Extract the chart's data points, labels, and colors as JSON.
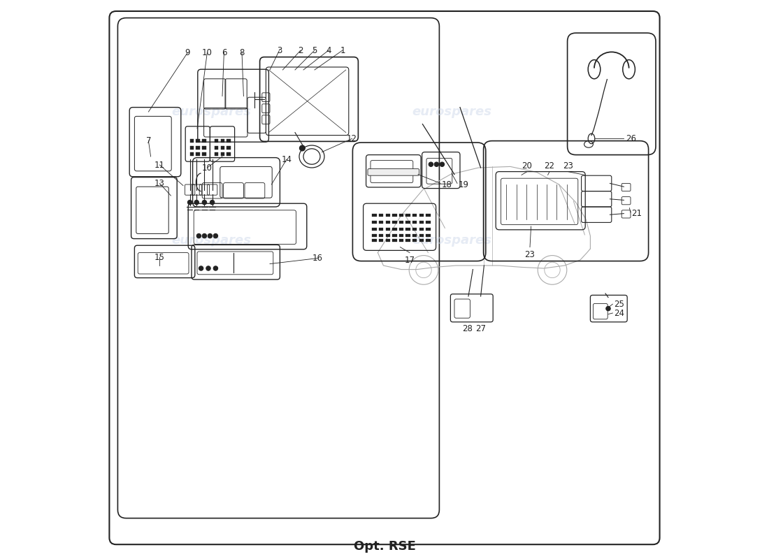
{
  "title": "Opt. RSE",
  "background_color": "#ffffff",
  "border_color": "#333333",
  "watermark_text": "eurospares",
  "watermark_color": "#c8d4e8",
  "watermark_alpha": 0.45,
  "font_size_labels": 9,
  "font_size_title": 13,
  "line_color": "#222222",
  "line_width": 0.8
}
